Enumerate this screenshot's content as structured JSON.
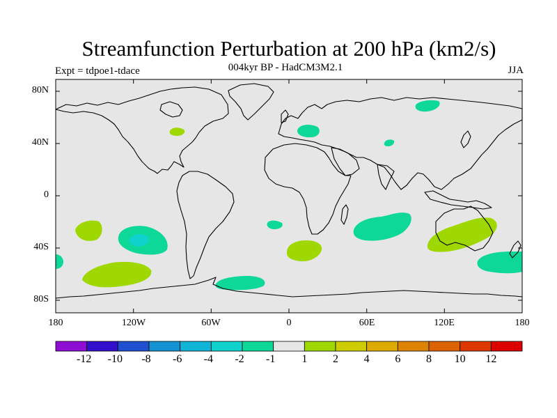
{
  "title": "Streamfunction Perturbation at 200 hPa (km2/s)",
  "subtitle": "004kyr BP - HadCM3M2.1",
  "experiment": "Expt = tdpoe1-tdace",
  "season": "JJA",
  "map": {
    "lat_ticks": [
      "80N",
      "40N",
      "0",
      "40S",
      "80S"
    ],
    "lon_ticks": [
      "180",
      "120W",
      "60W",
      "0",
      "60E",
      "120E",
      "180"
    ],
    "ocean_color": "#e6e6e6"
  },
  "colorbar": {
    "colors": [
      "#8e0ed4",
      "#3311cc",
      "#1e50d0",
      "#1592d2",
      "#0fb4d6",
      "#10d2cc",
      "#0ed898",
      "#e6e6e6",
      "#9ed800",
      "#cccc00",
      "#ddaa00",
      "#dc8400",
      "#dc6200",
      "#dc3800",
      "#dc0000"
    ],
    "labels": [
      "-12",
      "-10",
      "-8",
      "-6",
      "-4",
      "-2",
      "-1",
      "1",
      "2",
      "4",
      "6",
      "8",
      "10",
      "12"
    ]
  },
  "anomalies": [
    {
      "name": "north-america-positive",
      "sign": "positive",
      "level": 2,
      "lon": -86,
      "lat": 47
    },
    {
      "name": "europe-negative",
      "sign": "negative",
      "level": -1,
      "lon": 15,
      "lat": 47
    },
    {
      "name": "siberia-negative",
      "sign": "negative",
      "level": -1,
      "lon": 104,
      "lat": 69
    },
    {
      "name": "central-asia-negative",
      "sign": "negative",
      "level": -1,
      "lon": 75,
      "lat": 38
    },
    {
      "name": "south-pacific-positive",
      "sign": "positive",
      "level": 2,
      "lon": -158,
      "lat": -25
    },
    {
      "name": "southeast-pacific-negative",
      "sign": "negative",
      "level": -2,
      "lon": -107,
      "lat": -32
    },
    {
      "name": "southwest-pacific-high-lat-positive",
      "sign": "positive",
      "level": 2,
      "lon": -131,
      "lat": -62
    },
    {
      "name": "south-atlantic-small-negative",
      "sign": "negative",
      "level": -1,
      "lon": -10,
      "lat": -20
    },
    {
      "name": "south-atlantic-positive",
      "sign": "positive",
      "level": 2,
      "lon": 11,
      "lat": -38
    },
    {
      "name": "indian-ocean-negative",
      "sign": "negative",
      "level": -1,
      "lon": 70,
      "lat": -23
    },
    {
      "name": "australia-positive",
      "sign": "positive",
      "level": 2,
      "lon": 135,
      "lat": -28
    },
    {
      "name": "southern-ocean-negative",
      "sign": "negative",
      "level": -1,
      "lon": -27,
      "lat": -63
    },
    {
      "name": "new-zealand-negative",
      "sign": "negative",
      "level": -1,
      "lon": 168,
      "lat": -46
    },
    {
      "name": "west-edge-negative",
      "sign": "negative",
      "level": -1,
      "lon": -178,
      "lat": -45
    }
  ]
}
